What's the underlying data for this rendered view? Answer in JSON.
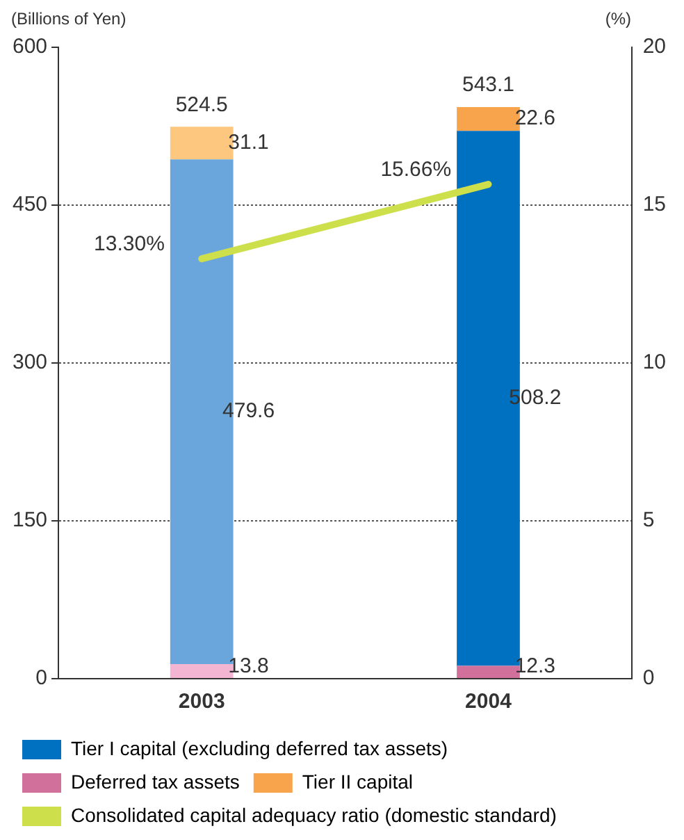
{
  "chart_data": {
    "type": "bar",
    "stacked": true,
    "ylabel": "(Billions of Yen)",
    "y2label": "(%)",
    "categories": [
      "2003",
      "2004"
    ],
    "ylim": [
      0,
      600
    ],
    "yticks": [
      0,
      150,
      300,
      450,
      600
    ],
    "y2lim": [
      0,
      20
    ],
    "y2ticks": [
      0,
      5,
      10,
      15,
      20
    ],
    "grid": "y",
    "legend": "bottom",
    "series": [
      {
        "name": "Deferred tax assets",
        "color": "#d2709c",
        "colors": [
          "#f4b5d2",
          "#d2709c"
        ],
        "values": [
          13.8,
          12.3
        ],
        "value_labels": [
          "13.8",
          "12.3"
        ]
      },
      {
        "name": "Tier I capital (excluding deferred tax assets)",
        "color": "#0070c0",
        "colors": [
          "#6aa5dc",
          "#0070c0"
        ],
        "values": [
          479.6,
          508.2
        ],
        "value_labels": [
          "479.6",
          "508.2"
        ]
      },
      {
        "name": "Tier II capital",
        "color": "#f8a44c",
        "colors": [
          "#fdc77f",
          "#f8a44c"
        ],
        "values": [
          31.1,
          22.6
        ],
        "value_labels": [
          "31.1",
          "22.6"
        ]
      },
      {
        "name": "Consolidated capital adequacy ratio (domestic standard)",
        "type": "line",
        "axis": "y2",
        "color": "#cde04c",
        "values": [
          13.3,
          15.66
        ],
        "value_labels": [
          "13.30%",
          "15.66%"
        ]
      }
    ],
    "totals": [
      "524.5",
      "543.1"
    ]
  }
}
